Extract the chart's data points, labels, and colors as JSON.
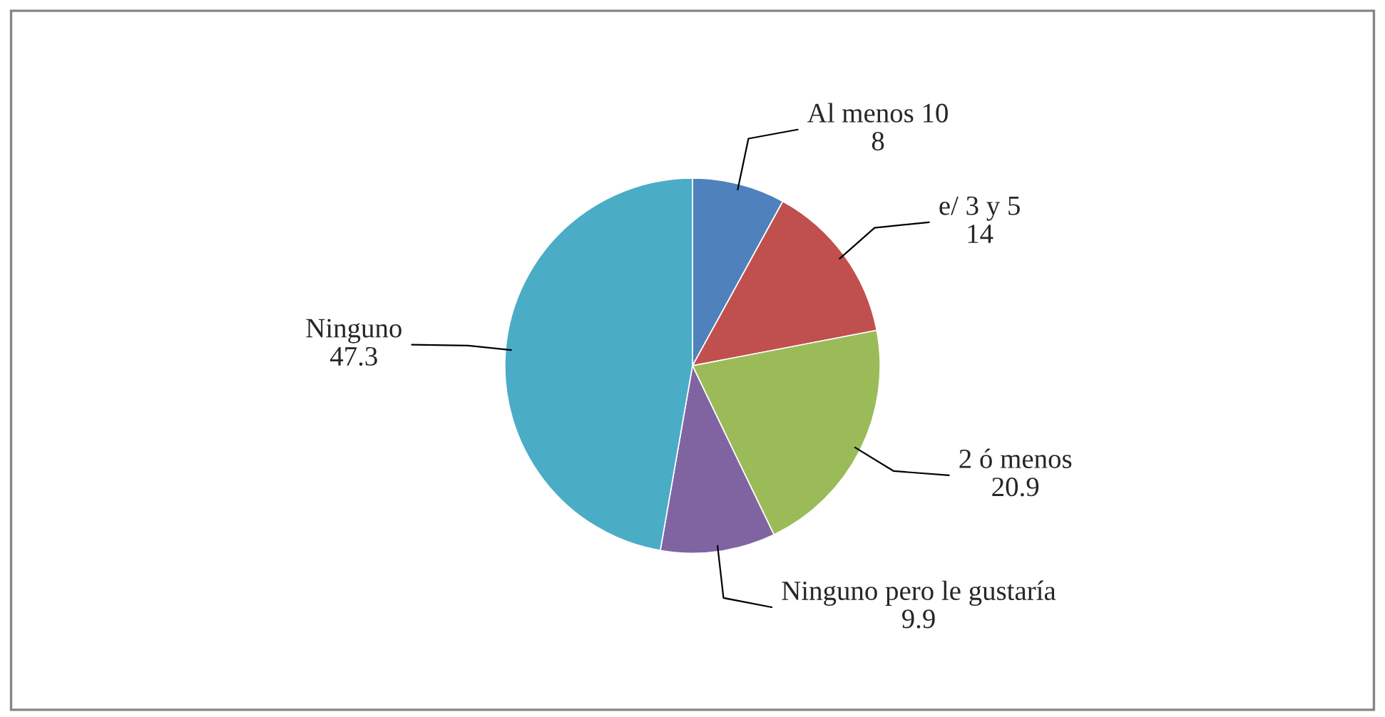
{
  "chart_data": {
    "type": "pie",
    "categories": [
      "Al menos 10",
      "e/ 3 y 5",
      "2 ó menos",
      "Ninguno pero le gustaría",
      "Ninguno"
    ],
    "values": [
      8,
      14,
      20.9,
      9.9,
      47.3
    ],
    "colors": [
      "#4f81bd",
      "#c0504d",
      "#9bbb59",
      "#8064a2",
      "#4bacc6"
    ],
    "data_labels": true,
    "legend": false
  }
}
